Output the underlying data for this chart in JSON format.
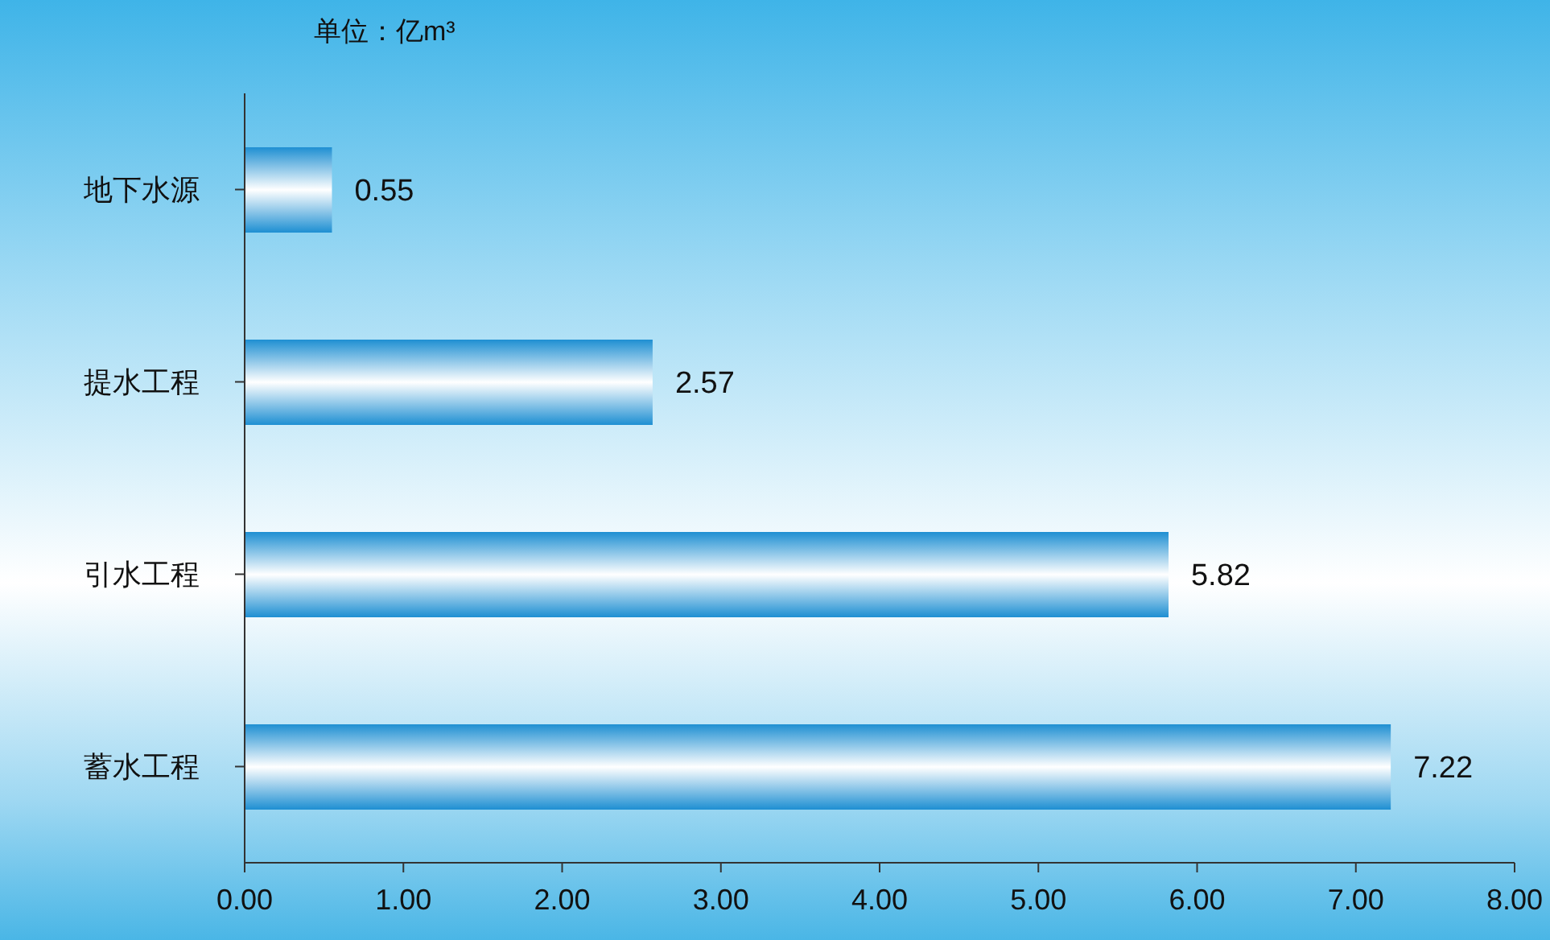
{
  "chart_data": {
    "type": "bar",
    "orientation": "horizontal",
    "title": "单位：亿m³",
    "categories": [
      "地下水源",
      "提水工程",
      "引水工程",
      "蓄水工程"
    ],
    "values": [
      0.55,
      2.57,
      5.82,
      7.22
    ],
    "color": "#1e8fd2",
    "xlim": [
      0,
      8
    ],
    "xticks": [
      {
        "value": 0,
        "label": "0.00"
      },
      {
        "value": 1,
        "label": "1.00"
      },
      {
        "value": 2,
        "label": "2.00"
      },
      {
        "value": 3,
        "label": "3.00"
      },
      {
        "value": 4,
        "label": "4.00"
      },
      {
        "value": 5,
        "label": "5.00"
      },
      {
        "value": 6,
        "label": "6.00"
      },
      {
        "value": 7,
        "label": "7.00"
      },
      {
        "value": 8,
        "label": "8.00"
      }
    ],
    "data_labels": true,
    "grid": false,
    "legend": false
  }
}
